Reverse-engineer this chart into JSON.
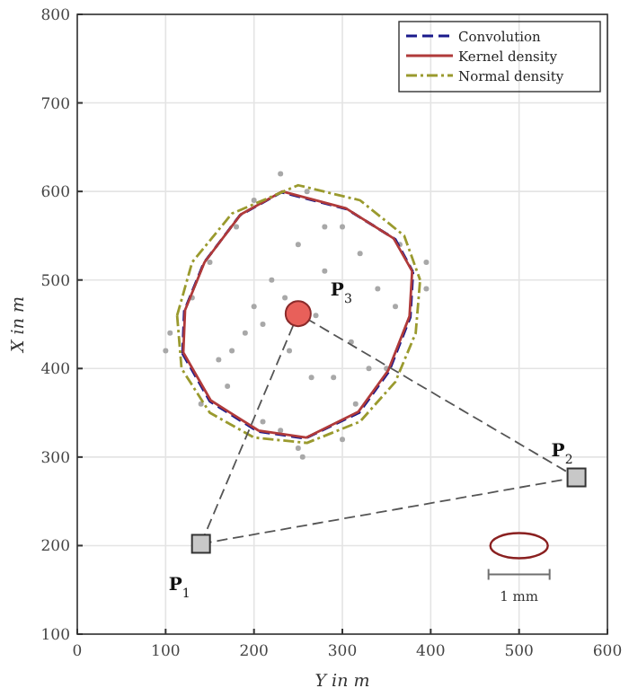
{
  "chart_data": {
    "type": "line",
    "xlabel": "Y in m",
    "ylabel": "X in m",
    "xlim": [
      0,
      600
    ],
    "ylim": [
      100,
      800
    ],
    "xticks": [
      0,
      100,
      200,
      300,
      400,
      500,
      600
    ],
    "yticks": [
      100,
      200,
      300,
      400,
      500,
      600,
      700,
      800
    ],
    "grid": true,
    "legend": "top right",
    "series": [
      {
        "type": "scatter",
        "color": "#a8a8a8",
        "marker": "circle",
        "x": [
          230,
          260,
          200,
          300,
          180,
          250,
          320,
          150,
          280,
          220,
          340,
          130,
          360,
          270,
          210,
          190,
          310,
          240,
          160,
          350,
          290,
          170,
          330,
          140,
          395,
          230,
          250,
          100,
          395,
          255,
          210,
          300,
          105,
          365,
          200,
          280,
          235,
          265,
          315,
          175
        ],
        "values": [
          620,
          600,
          590,
          560,
          560,
          540,
          530,
          520,
          510,
          500,
          490,
          480,
          470,
          460,
          450,
          440,
          430,
          420,
          410,
          400,
          390,
          380,
          400,
          360,
          520,
          330,
          310,
          420,
          490,
          300,
          340,
          320,
          440,
          540,
          470,
          560,
          480,
          390,
          360,
          420
        ]
      },
      {
        "name": "Convolution",
        "color": "#1a1a8c",
        "line_style": "dashed",
        "x": [
          119,
          121,
          143,
          184,
          231,
          305,
          360,
          380,
          null,
          119,
          150,
          204,
          258,
          319,
          353,
          377,
          380
        ],
        "values": [
          417,
          465,
          519,
          573,
          599,
          580,
          546,
          509,
          null,
          417,
          363,
          329,
          321,
          350,
          397,
          458,
          509
        ]
      },
      {
        "name": "Kernel density",
        "color": "#b03a3a",
        "line_style": "solid",
        "x": [
          120,
          122,
          144,
          185,
          232,
          304,
          358,
          379,
          null,
          120,
          151,
          205,
          259,
          318,
          352,
          376,
          379
        ],
        "values": [
          418,
          466,
          520,
          574,
          600,
          581,
          547,
          510,
          null,
          418,
          364,
          330,
          322,
          351,
          398,
          459,
          510
        ]
      },
      {
        "name": "Normal density",
        "color": "#9a9a2e",
        "line_style": "dashdot",
        "x": [
          113,
          130,
          175,
          250,
          320,
          370,
          388,
          null,
          113,
          118,
          150,
          200,
          260,
          320,
          360,
          383,
          388
        ],
        "values": [
          460,
          520,
          575,
          607,
          590,
          550,
          500,
          null,
          460,
          400,
          350,
          322,
          316,
          340,
          385,
          440,
          500
        ]
      },
      {
        "color": "#555555",
        "line_style": "dashed",
        "x": [
          140,
          250,
          565
        ],
        "values": [
          202,
          462,
          277
        ]
      },
      {
        "color": "#555555",
        "line_style": "dashed",
        "x": [
          140,
          565
        ],
        "values": [
          202,
          277
        ]
      },
      {
        "type": "scatter",
        "color": "#c8c8c8",
        "marker": "square",
        "x": [
          140,
          565
        ],
        "values": [
          202,
          277
        ]
      },
      {
        "type": "scatter",
        "color": "#e8605a",
        "marker": "circle",
        "x": [
          250
        ],
        "values": [
          462
        ]
      }
    ],
    "annotations": [
      {
        "text": "P$_{1}$",
        "x": 140,
        "y": 202
      },
      {
        "text": "P$_{2}$",
        "x": 565,
        "y": 277
      },
      {
        "text": "P$_{3}$",
        "x": 250,
        "y": 462
      },
      "1 mm"
    ]
  }
}
